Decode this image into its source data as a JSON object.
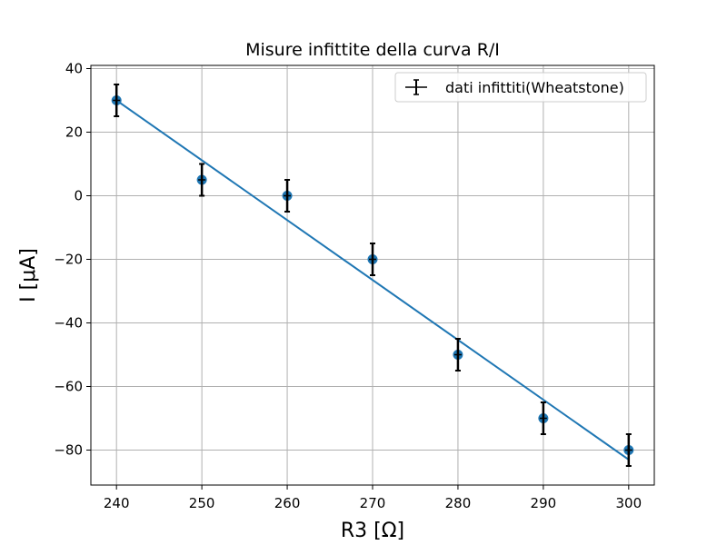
{
  "chart_data": {
    "type": "scatter",
    "title": "Misure infittite della curva R/I",
    "xlabel": "R3 [Ω]",
    "ylabel": "I [μA]",
    "xlim": [
      237,
      303
    ],
    "ylim": [
      -91,
      41
    ],
    "xticks": [
      240,
      250,
      260,
      270,
      280,
      290,
      300
    ],
    "yticks": [
      40,
      20,
      0,
      -20,
      -40,
      -60,
      -80
    ],
    "ytick_labels": [
      "40",
      "20",
      "0",
      "−20",
      "−40",
      "−60",
      "−80"
    ],
    "grid": true,
    "legend_position": "upper right",
    "series": [
      {
        "name": "dati infittiti(Wheatstone)",
        "kind": "errorbar",
        "x": [
          240,
          250,
          260,
          270,
          280,
          290,
          300
        ],
        "y": [
          30,
          5,
          0,
          -20,
          -50,
          -70,
          -80
        ],
        "yerr": 5
      }
    ],
    "fit_line": {
      "x": [
        240,
        300
      ],
      "y": [
        30,
        -83
      ]
    },
    "colors": {
      "points": "#1f77b4",
      "fit": "#1f77b4",
      "errorbars": "#000000",
      "grid": "#b0b0b0"
    }
  }
}
